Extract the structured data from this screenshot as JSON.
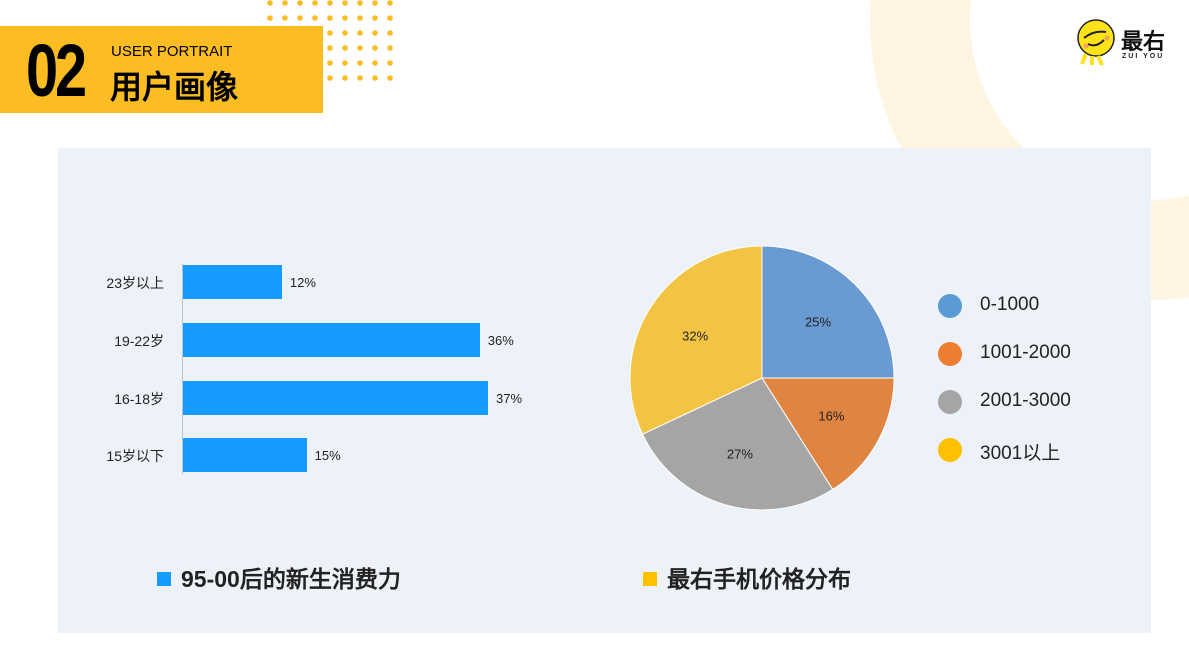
{
  "header": {
    "number": "02",
    "subtitle_en": "USER PORTRAIT",
    "title_cn": "用户画像"
  },
  "logo": {
    "name": "最右",
    "sub": "ZUI YOU"
  },
  "colors": {
    "accent": "#fbbd22",
    "bar": "#169cff",
    "panel": "#edf2f8"
  },
  "chart_data": [
    {
      "type": "bar",
      "orientation": "horizontal",
      "title": "95-00后的新生消费力",
      "categories": [
        "23岁以上",
        "19-22岁",
        "16-18岁",
        "15岁以下"
      ],
      "values": [
        12,
        36,
        37,
        15
      ],
      "labels": [
        "12%",
        "36%",
        "37%",
        "15%"
      ],
      "xlim": [
        0,
        40
      ],
      "color": "#169cff"
    },
    {
      "type": "pie",
      "title": "最右手机价格分布",
      "categories": [
        "0-1000",
        "1001-2000",
        "2001-3000",
        "3001以上"
      ],
      "values": [
        25,
        16,
        27,
        32
      ],
      "labels": [
        "25%",
        "16%",
        "27%",
        "32%"
      ],
      "colors": [
        "#6a9ad2",
        "#e08441",
        "#a5a5a5",
        "#f3c443"
      ],
      "legend_colors": [
        "#5b9bd5",
        "#ed7d31",
        "#a5a5a5",
        "#ffc000"
      ],
      "legend": "right"
    }
  ]
}
